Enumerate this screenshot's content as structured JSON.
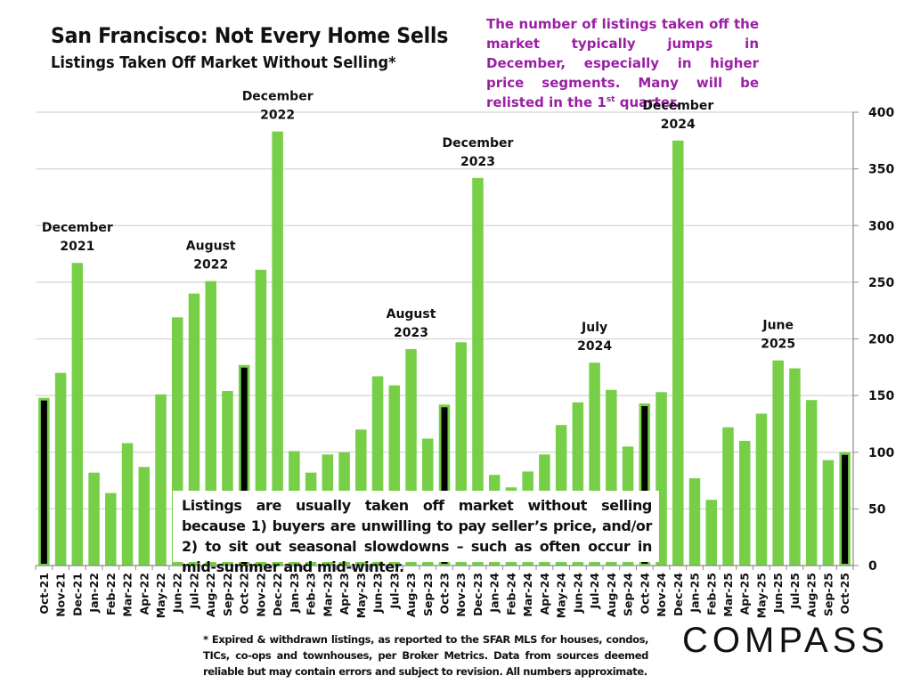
{
  "header": {
    "title": "San Francisco: Not Every Home Sells",
    "subtitle": "Listings Taken Off Market Without Selling*"
  },
  "note": {
    "text_before_sup": "The number of listings taken off the market typically jumps in December, especially in higher price segments. Many will be relisted in the 1",
    "sup": "st",
    "text_after_sup": " quarter.",
    "color": "#9b1fa5"
  },
  "explanation": "Listings are usually taken off market without selling because 1) buyers are unwilling to pay seller’s price, and/or 2) to sit out seasonal slowdowns – such as often occur in mid-summer and mid-winter.",
  "footnote": "* Expired & withdrawn listings, as reported to the SFAR MLS for houses, condos, TICs, co-ops and townhouses, per Broker Metrics. Data from sources deemed reliable but may contain errors and subject to revision. All numbers approximate.",
  "logo": "COMPASS",
  "chart_data": {
    "type": "bar",
    "title": "San Francisco: Not Every Home Sells",
    "subtitle": "Listings Taken Off Market Without Selling*",
    "xlabel": "",
    "ylabel": "",
    "ylim": [
      0,
      400
    ],
    "yticks": [
      0,
      50,
      100,
      150,
      200,
      250,
      300,
      350,
      400
    ],
    "y_axis_side": "right",
    "grid": true,
    "legend": "none",
    "bar_color": "#76cf47",
    "highlight_color": "#000000",
    "categories": [
      "Oct-21",
      "Nov-21",
      "Dec-21",
      "Jan-22",
      "Feb-22",
      "Mar-22",
      "Apr-22",
      "May-22",
      "Jun-22",
      "Jul-22",
      "Aug-22",
      "Sep-22",
      "Oct-22",
      "Nov-22",
      "Dec-22",
      "Jan-23",
      "Feb-23",
      "Mar-23",
      "Apr-23",
      "May-23",
      "Jun-23",
      "Jul-23",
      "Aug-23",
      "Sep-23",
      "Oct-23",
      "Nov-23",
      "Dec-23",
      "Jan-24",
      "Feb-24",
      "Mar-24",
      "Apr-24",
      "May-24",
      "Jun-24",
      "Jul-24",
      "Aug-24",
      "Sep-24",
      "Oct-24",
      "Nov-24",
      "Dec-24",
      "Jan-25",
      "Feb-25",
      "Mar-25",
      "Apr-25",
      "May-25",
      "Jun-25",
      "Jul-25",
      "Aug-25",
      "Sep-25",
      "Oct-25"
    ],
    "values": [
      148,
      170,
      267,
      82,
      64,
      108,
      87,
      151,
      219,
      240,
      251,
      154,
      177,
      261,
      383,
      101,
      82,
      98,
      100,
      120,
      167,
      159,
      191,
      112,
      142,
      197,
      342,
      80,
      69,
      83,
      98,
      124,
      144,
      179,
      155,
      105,
      143,
      153,
      375,
      77,
      58,
      122,
      110,
      134,
      181,
      174,
      146,
      93,
      100
    ],
    "highlighted": [
      "Oct-21",
      "Oct-22",
      "Oct-23",
      "Oct-24",
      "Oct-25"
    ],
    "annotations": [
      {
        "category": "Dec-21",
        "lines": [
          "December",
          "2021"
        ]
      },
      {
        "category": "Aug-22",
        "lines": [
          "August",
          "2022"
        ]
      },
      {
        "category": "Dec-22",
        "lines": [
          "December",
          "2022"
        ]
      },
      {
        "category": "Aug-23",
        "lines": [
          "August",
          "2023"
        ]
      },
      {
        "category": "Dec-23",
        "lines": [
          "December",
          "2023"
        ]
      },
      {
        "category": "Jul-24",
        "lines": [
          "July",
          "2024"
        ]
      },
      {
        "category": "Dec-24",
        "lines": [
          "December",
          "2024"
        ]
      },
      {
        "category": "Jun-25",
        "lines": [
          "June",
          "2025"
        ]
      }
    ]
  }
}
